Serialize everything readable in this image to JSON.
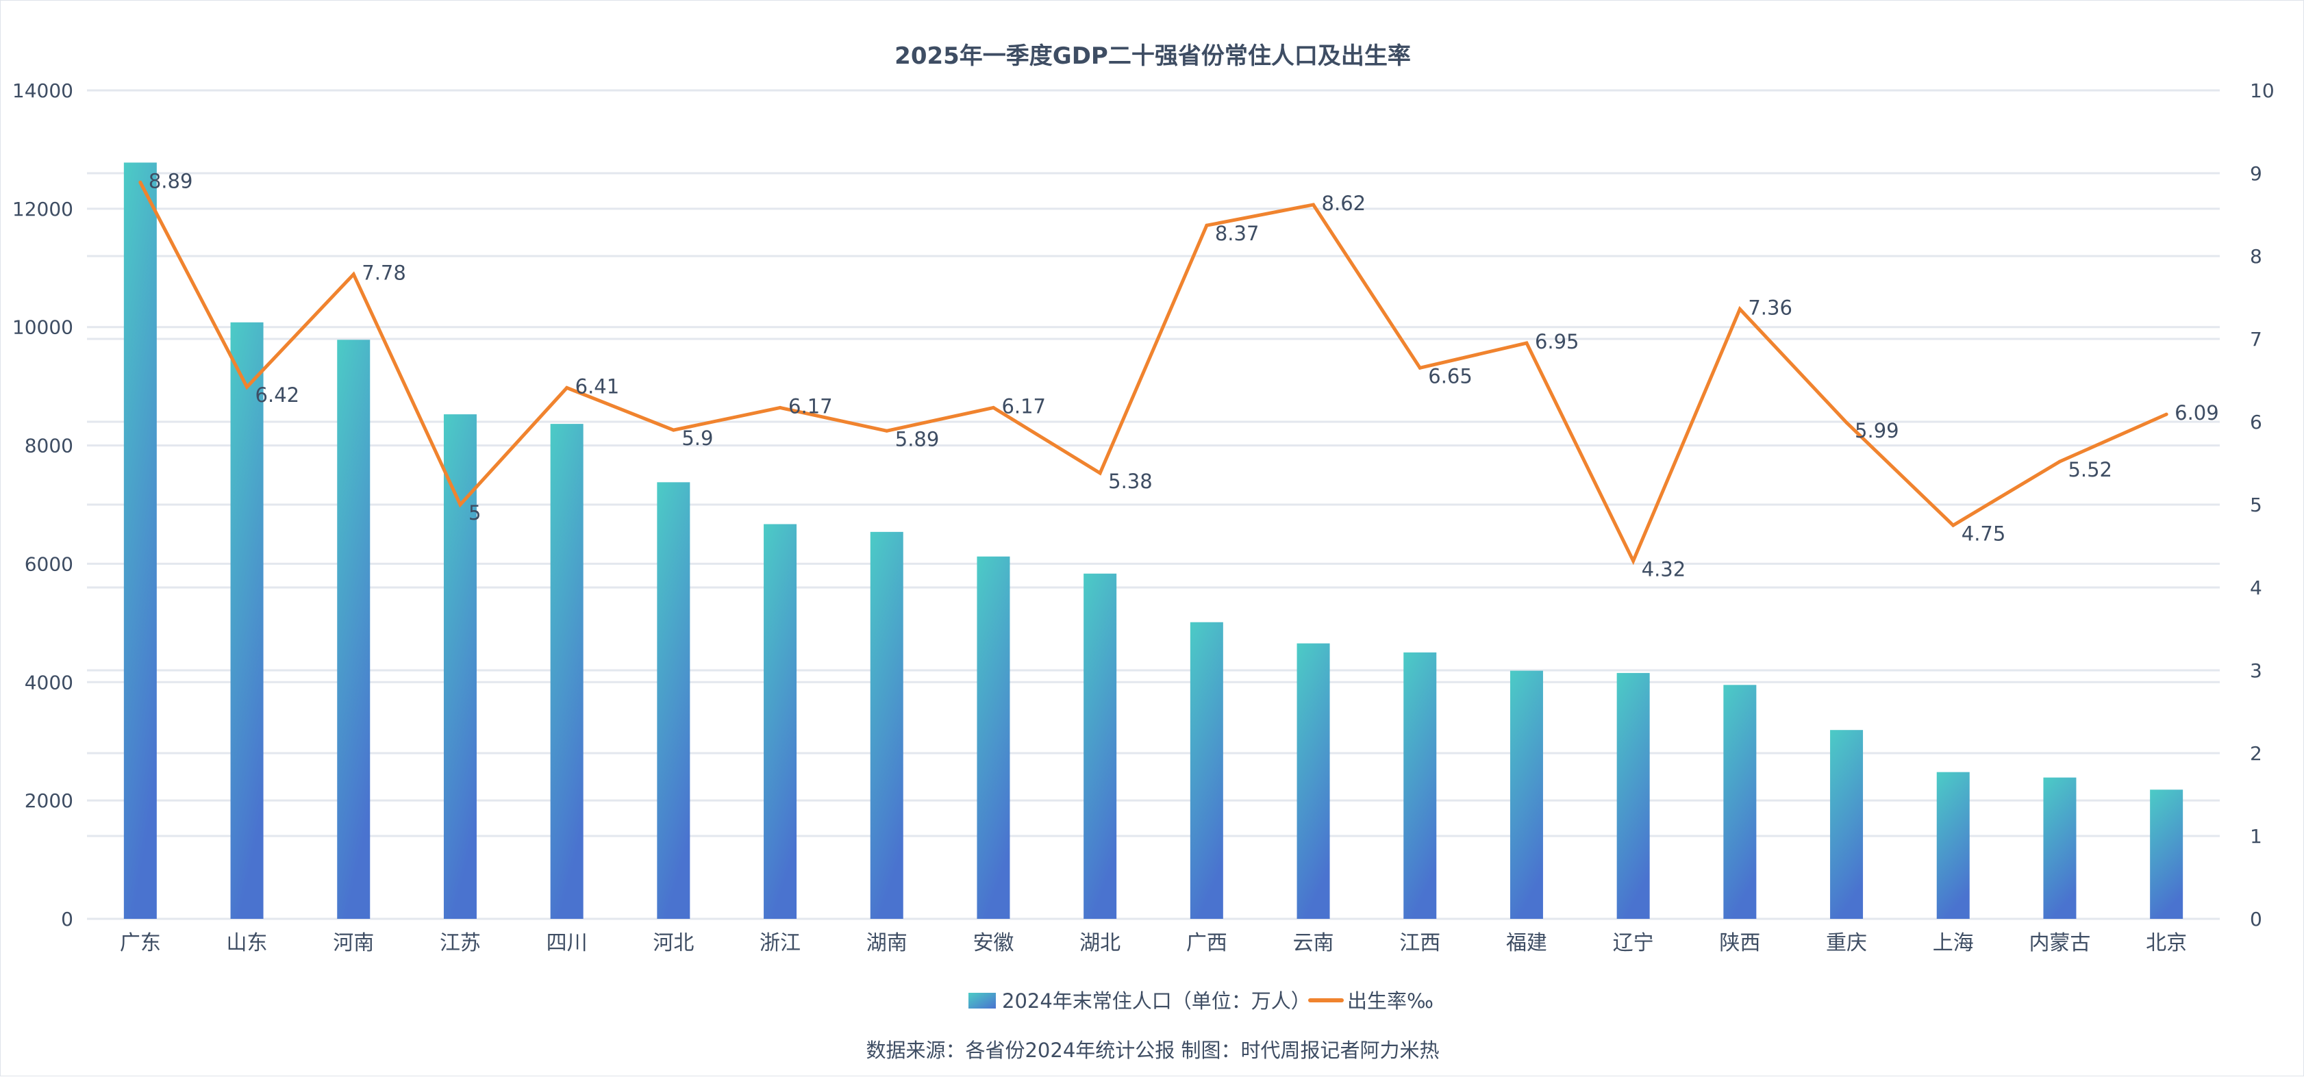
{
  "chart_data": {
    "type": "bar",
    "title": "2025年一季度GDP二十强省份常住人口及出生率",
    "categories": [
      "广东",
      "山东",
      "河南",
      "江苏",
      "四川",
      "河北",
      "浙江",
      "湖南",
      "安徽",
      "湖北",
      "广西",
      "云南",
      "江西",
      "福建",
      "辽宁",
      "陕西",
      "重庆",
      "上海",
      "内蒙古",
      "北京"
    ],
    "series": [
      {
        "name": "2024年末常住人口（单位：万人）",
        "type": "bar",
        "axis": "left",
        "values": [
          12780,
          10080,
          9785,
          8526,
          8364,
          7378,
          6670,
          6539,
          6123,
          5834,
          5013,
          4655,
          4502,
          4193,
          4155,
          3953,
          3191,
          2480,
          2388,
          2183
        ],
        "color_top": "#4ccbc6",
        "color_bottom": "#4a73cf"
      },
      {
        "name": "出生率‰",
        "type": "line",
        "axis": "right",
        "values": [
          8.89,
          6.42,
          7.78,
          5,
          6.41,
          5.9,
          6.17,
          5.89,
          6.17,
          5.38,
          8.37,
          8.62,
          6.65,
          6.95,
          4.32,
          7.36,
          5.99,
          4.75,
          5.52,
          6.09
        ],
        "labels": [
          "8.89",
          "6.42",
          "7.78",
          "5",
          "6.41",
          "5.9",
          "6.17",
          "5.89",
          "6.17",
          "5.38",
          "8.37",
          "8.62",
          "6.65",
          "6.95",
          "4.32",
          "7.36",
          "5.99",
          "4.75",
          "5.52",
          "6.09"
        ],
        "color": "#f0832e"
      }
    ],
    "y_left": {
      "ylim": [
        0,
        14000
      ],
      "ticks": [
        "0",
        "2000",
        "4000",
        "6000",
        "8000",
        "10000",
        "12000",
        "14000"
      ]
    },
    "y_right": {
      "ylim": [
        0,
        10
      ],
      "ticks": [
        "0",
        "1",
        "2",
        "3",
        "4",
        "5",
        "6",
        "7",
        "8",
        "9",
        "10"
      ]
    },
    "xlabel": "",
    "ylabel": "",
    "grid": true,
    "legend_position": "bottom-center",
    "source_note": "数据来源：各省份2024年统计公报 制图：时代周报记者阿力米热"
  }
}
